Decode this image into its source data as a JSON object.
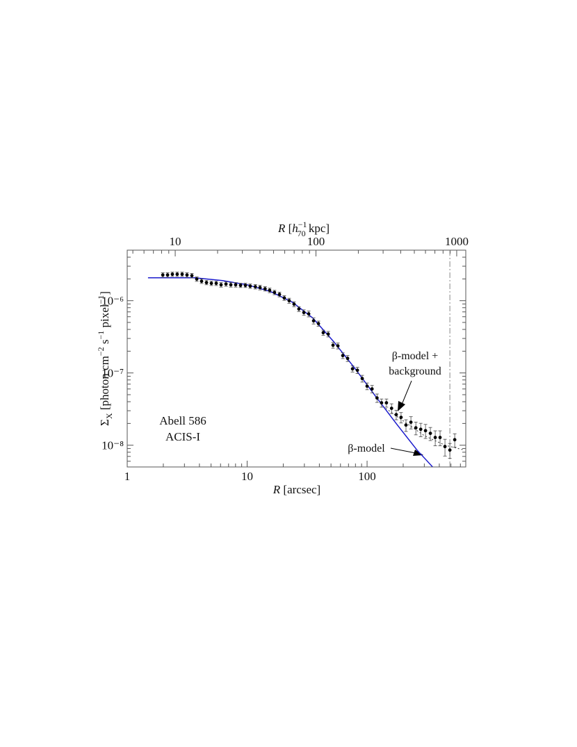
{
  "chart_data": {
    "type": "scatter",
    "xlabel": [
      "R",
      " [arcsec]"
    ],
    "x2label": [
      "R",
      " [",
      "h",
      "−1",
      "70",
      " kpc]"
    ],
    "ylabel": [
      "Σ",
      "X",
      " [photon cm",
      "−2",
      " s",
      "−1",
      " pixel",
      "−1",
      "]"
    ],
    "xlim": [
      1,
      665
    ],
    "xticks": [
      1,
      10,
      100
    ],
    "xminorticks": [
      2,
      3,
      4,
      5,
      6,
      7,
      8,
      9,
      20,
      30,
      40,
      50,
      60,
      70,
      80,
      90,
      200,
      300,
      400,
      500,
      600
    ],
    "x2lim": [
      4.56,
      1160
    ],
    "x2ticks": [
      10,
      100,
      1000
    ],
    "x2minorticks": [
      5,
      6,
      7,
      8,
      9,
      20,
      30,
      40,
      50,
      60,
      70,
      80,
      90,
      200,
      300,
      400,
      500,
      600,
      700,
      800,
      900
    ],
    "ylim": [
      5e-09,
      5e-06
    ],
    "yticks": [
      {
        "value": 1e-08,
        "label": "10⁻⁸"
      },
      {
        "value": 1e-07,
        "label": "10⁻⁷"
      },
      {
        "value": 1e-06,
        "label": "10⁻⁶"
      }
    ],
    "yminorticks": [
      6e-09,
      7e-09,
      8e-09,
      9e-09,
      2e-08,
      3e-08,
      4e-08,
      5e-08,
      6e-08,
      7e-08,
      8e-08,
      9e-08,
      2e-07,
      3e-07,
      4e-07,
      5e-07,
      6e-07,
      7e-07,
      8e-07,
      9e-07,
      2e-06,
      3e-06,
      4e-06,
      5e-06
    ],
    "log_x": true,
    "log_y": true,
    "x": [
      1.98,
      2.17,
      2.38,
      2.61,
      2.87,
      3.15,
      3.46,
      3.8,
      4.17,
      4.58,
      5.03,
      5.52,
      6.06,
      6.66,
      7.31,
      8.02,
      8.81,
      9.67,
      10.6,
      11.7,
      12.8,
      14.1,
      15.4,
      16.9,
      18.6,
      20.4,
      22.4,
      24.6,
      27.0,
      29.7,
      32.6,
      35.8,
      39.3,
      43.1,
      47.4,
      52.0,
      57.1,
      62.7,
      68.8,
      75.6,
      83.0,
      91.1,
      100,
      110,
      121,
      132,
      145,
      160,
      175,
      192,
      211,
      232,
      255,
      280,
      307,
      337,
      370,
      406,
      446,
      490,
      538
    ],
    "values": [
      2.27e-06,
      2.27e-06,
      2.32e-06,
      2.32e-06,
      2.32e-06,
      2.27e-06,
      2.22e-06,
      1.99e-06,
      1.86e-06,
      1.78e-06,
      1.74e-06,
      1.74e-06,
      1.66e-06,
      1.7e-06,
      1.66e-06,
      1.66e-06,
      1.63e-06,
      1.63e-06,
      1.59e-06,
      1.56e-06,
      1.52e-06,
      1.46e-06,
      1.39e-06,
      1.3e-06,
      1.22e-06,
      1.09e-06,
      1e-06,
      8.95e-07,
      7.67e-07,
      6.87e-07,
      6.57e-07,
      5.26e-07,
      4.82e-07,
      3.61e-07,
      3.45e-07,
      2.42e-07,
      2.37e-07,
      1.74e-07,
      1.59e-07,
      1.14e-07,
      1.09e-07,
      8.37e-08,
      6.56e-08,
      6.01e-08,
      4.51e-08,
      3.86e-08,
      3.86e-08,
      3.24e-08,
      2.65e-08,
      2.43e-08,
      1.9e-08,
      2.08e-08,
      1.74e-08,
      1.66e-08,
      1.59e-08,
      1.46e-08,
      1.28e-08,
      1.28e-08,
      9.58e-09,
      8.57e-09,
      1.19e-08
    ],
    "errors": [
      1.6e-07,
      1.6e-07,
      1.6e-07,
      1.6e-07,
      1.6e-07,
      1.6e-07,
      1.6e-07,
      1.4e-07,
      1.3e-07,
      1.2e-07,
      1.2e-07,
      1.2e-07,
      1.2e-07,
      1.2e-07,
      1.2e-07,
      1.2e-07,
      1.1e-07,
      1.1e-07,
      1.1e-07,
      1.1e-07,
      1.1e-07,
      1e-07,
      1e-07,
      9e-08,
      9e-08,
      8e-08,
      8e-08,
      7e-08,
      6e-08,
      6e-08,
      6e-08,
      5e-08,
      4e-08,
      3e-08,
      3e-08,
      2.2e-08,
      2.2e-08,
      1.6e-08,
      1.5e-08,
      1.1e-08,
      1.1e-08,
      9e-09,
      7e-09,
      7e-09,
      6e-09,
      5e-09,
      5e-09,
      5e-09,
      4e-09,
      4e-09,
      3.5e-09,
      4e-09,
      3.5e-09,
      3.5e-09,
      3.5e-09,
      3e-09,
      3e-09,
      3e-09,
      2.5e-09,
      2e-09,
      2.5e-09
    ],
    "color": "#000000",
    "model": {
      "x": [
        1.49,
        3.65,
        6.22,
        10,
        15.8,
        23.7,
        35.3,
        52.7,
        78.7,
        117,
        175,
        261,
        351
      ],
      "values": [
        2.07e-06,
        2.07e-06,
        1.9e-06,
        1.66e-06,
        1.33e-06,
        9.57e-07,
        5.75e-07,
        2.71e-07,
        1.17e-07,
        4.82e-08,
        1.99e-08,
        8.57e-09,
        5.03e-09
      ],
      "color": "#1a1acc"
    },
    "model_bg": {
      "x": [
        143,
        200,
        299,
        446,
        648
      ],
      "values": [
        3.24e-08,
        2.17e-08,
        1.36e-08,
        1e-08,
        8.57e-09
      ],
      "color": "#333333"
    },
    "vline_x": 490,
    "annotations": [
      [
        "β-model +",
        "background"
      ],
      [
        "β-model"
      ],
      [
        "Abell 586",
        "ACIS-I"
      ]
    ]
  }
}
